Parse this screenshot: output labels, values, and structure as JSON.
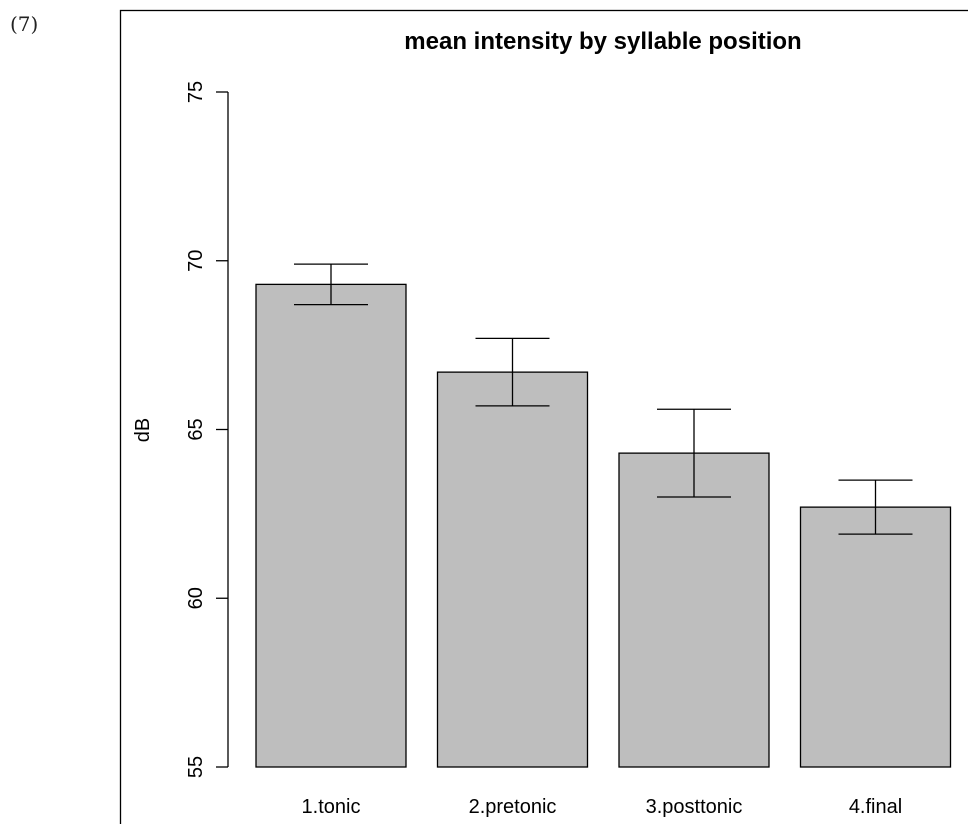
{
  "example_number": "(7)",
  "chart_data": {
    "type": "bar",
    "title": "mean intensity by syllable position",
    "xlabel": "",
    "ylabel": "dB",
    "ylim": [
      55,
      75
    ],
    "yticks": [
      "55",
      "60",
      "65",
      "70",
      "75"
    ],
    "categories": [
      "1.tonic",
      "2.pretonic",
      "3.posttonic",
      "4.final"
    ],
    "values": [
      69.3,
      66.7,
      64.3,
      62.7
    ],
    "error_lower": [
      68.7,
      65.7,
      63.0,
      61.9
    ],
    "error_upper": [
      69.9,
      67.7,
      65.6,
      63.5
    ],
    "bar_color": "#bebebe",
    "grid": false
  }
}
